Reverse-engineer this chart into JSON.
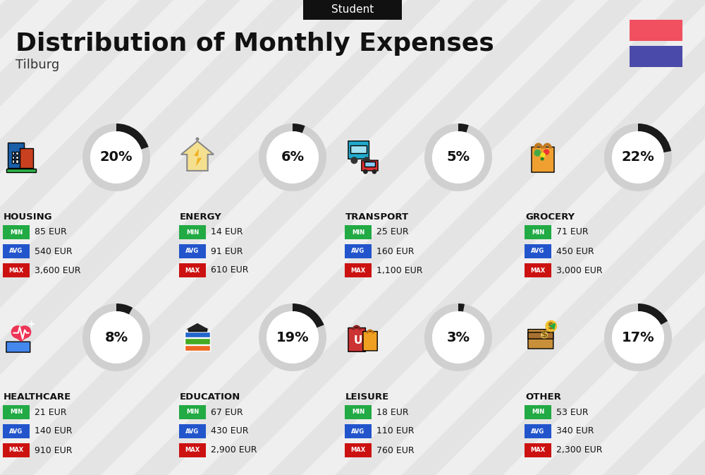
{
  "title": "Distribution of Monthly Expenses",
  "subtitle": "Student",
  "location": "Tilburg",
  "background_color": "#efefef",
  "header_bg": "#111111",
  "header_text_color": "#ffffff",
  "flag_colors": [
    "#f05060",
    "#4a4aaa"
  ],
  "categories": [
    {
      "name": "HOUSING",
      "percent": 20,
      "min": "85 EUR",
      "avg": "540 EUR",
      "max": "3,600 EUR",
      "row": 0,
      "col": 0
    },
    {
      "name": "ENERGY",
      "percent": 6,
      "min": "14 EUR",
      "avg": "91 EUR",
      "max": "610 EUR",
      "row": 0,
      "col": 1
    },
    {
      "name": "TRANSPORT",
      "percent": 5,
      "min": "25 EUR",
      "avg": "160 EUR",
      "max": "1,100 EUR",
      "row": 0,
      "col": 2
    },
    {
      "name": "GROCERY",
      "percent": 22,
      "min": "71 EUR",
      "avg": "450 EUR",
      "max": "3,000 EUR",
      "row": 0,
      "col": 3
    },
    {
      "name": "HEALTHCARE",
      "percent": 8,
      "min": "21 EUR",
      "avg": "140 EUR",
      "max": "910 EUR",
      "row": 1,
      "col": 0
    },
    {
      "name": "EDUCATION",
      "percent": 19,
      "min": "67 EUR",
      "avg": "430 EUR",
      "max": "2,900 EUR",
      "row": 1,
      "col": 1
    },
    {
      "name": "LEISURE",
      "percent": 3,
      "min": "18 EUR",
      "avg": "110 EUR",
      "max": "760 EUR",
      "row": 1,
      "col": 2
    },
    {
      "name": "OTHER",
      "percent": 17,
      "min": "53 EUR",
      "avg": "340 EUR",
      "max": "2,300 EUR",
      "row": 1,
      "col": 3
    }
  ],
  "min_color": "#22aa44",
  "avg_color": "#2255cc",
  "max_color": "#cc1111",
  "label_text_color": "#ffffff",
  "stripe_color": "#e0e0e0",
  "stripe_alpha": 0.7,
  "icon_colors": {
    "HOUSING": [
      "#1a5fa8",
      "#e05020",
      "#2db34a"
    ],
    "ENERGY": [
      "#f0c030",
      "#555555"
    ],
    "TRANSPORT": [
      "#20aacc",
      "#dd3030"
    ],
    "GROCERY": [
      "#f0a030",
      "#44aa44"
    ],
    "HEALTHCARE": [
      "#ee4466",
      "#4488ee"
    ],
    "EDUCATION": [
      "#ee6622",
      "#44aa22",
      "#333333"
    ],
    "LEISURE": [
      "#cc3333",
      "#f0a020"
    ],
    "OTHER": [
      "#c8903a",
      "#f0c030",
      "#44aa44"
    ]
  }
}
